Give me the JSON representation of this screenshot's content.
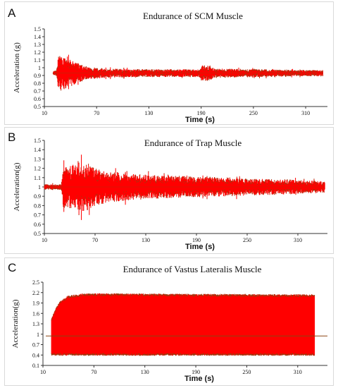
{
  "colors": {
    "signal": "#ff0000",
    "edge": "#8b4513",
    "axis": "#333333"
  },
  "chart_data": [
    {
      "type": "line",
      "panel_label": "A",
      "title": "Endurance of SCM Muscle",
      "xlabel": "Time (s)",
      "ylabel": "Acceleration (g)",
      "xlim": [
        10,
        335
      ],
      "ylim": [
        0.5,
        1.5
      ],
      "xticks": [
        "10",
        "70",
        "130",
        "190",
        "250",
        "310"
      ],
      "yticks": [
        "0.5",
        "0.6",
        "0.7",
        "0.8",
        "0.9",
        "1",
        "1.1",
        "1.2",
        "1.3",
        "1.4",
        "1.5"
      ],
      "series": [
        {
          "baseline": 0.93,
          "envelope": [
            [
              20,
              0.02
            ],
            [
              21,
              0.03
            ],
            [
              22,
              0.03
            ],
            [
              24,
              0.04
            ],
            [
              26,
              0.22
            ],
            [
              30,
              0.22
            ],
            [
              40,
              0.17
            ],
            [
              50,
              0.12
            ],
            [
              60,
              0.08
            ],
            [
              80,
              0.06
            ],
            [
              120,
              0.05
            ],
            [
              188,
              0.05
            ],
            [
              190,
              0.1
            ],
            [
              200,
              0.1
            ],
            [
              205,
              0.06
            ],
            [
              260,
              0.05
            ],
            [
              300,
              0.04
            ],
            [
              330,
              0.04
            ]
          ]
        }
      ]
    },
    {
      "type": "line",
      "panel_label": "B",
      "title": "Endurance of Trap Muscle",
      "xlabel": "Time (s)",
      "ylabel": "Acceleration(g)",
      "xlim": [
        10,
        345
      ],
      "ylim": [
        0.5,
        1.5
      ],
      "xticks": [
        "10",
        "70",
        "130",
        "190",
        "250",
        "310"
      ],
      "yticks": [
        "0.5",
        "0.6",
        "0.7",
        "0.8",
        "0.9",
        "1",
        "1.1",
        "1.2",
        "1.3",
        "1.4",
        "1.5"
      ],
      "series": [
        {
          "baseline": 1.0,
          "envelope": [
            [
              10,
              0.03
            ],
            [
              30,
              0.03
            ],
            [
              32,
              0.22
            ],
            [
              45,
              0.24
            ],
            [
              60,
              0.28
            ],
            [
              70,
              0.2
            ],
            [
              90,
              0.16
            ],
            [
              130,
              0.13
            ],
            [
              200,
              0.11
            ],
            [
              260,
              0.09
            ],
            [
              300,
              0.08
            ],
            [
              342,
              0.06
            ]
          ]
        }
      ]
    },
    {
      "type": "line",
      "panel_label": "C",
      "title": "Endurance of Vastus Lateralis Muscle",
      "xlabel": "Time (s)",
      "ylabel": "Acceleration(g)",
      "xlim": [
        10,
        345
      ],
      "ylim": [
        0.1,
        2.5
      ],
      "xticks": [
        "10",
        "70",
        "130",
        "190",
        "250",
        "310"
      ],
      "yticks": [
        "0.1",
        "0.4",
        "0.7",
        "1",
        "1.3",
        "1.6",
        "1.9",
        "2.2",
        "2.5"
      ],
      "series": [
        {
          "baseline": 0.95,
          "low": 0.38,
          "high_ramp": [
            [
              20,
              1.45
            ],
            [
              25,
              1.75
            ],
            [
              30,
              1.95
            ],
            [
              40,
              2.12
            ],
            [
              60,
              2.18
            ],
            [
              330,
              2.15
            ]
          ],
          "x_start": 20,
          "x_end": 330
        }
      ]
    }
  ]
}
